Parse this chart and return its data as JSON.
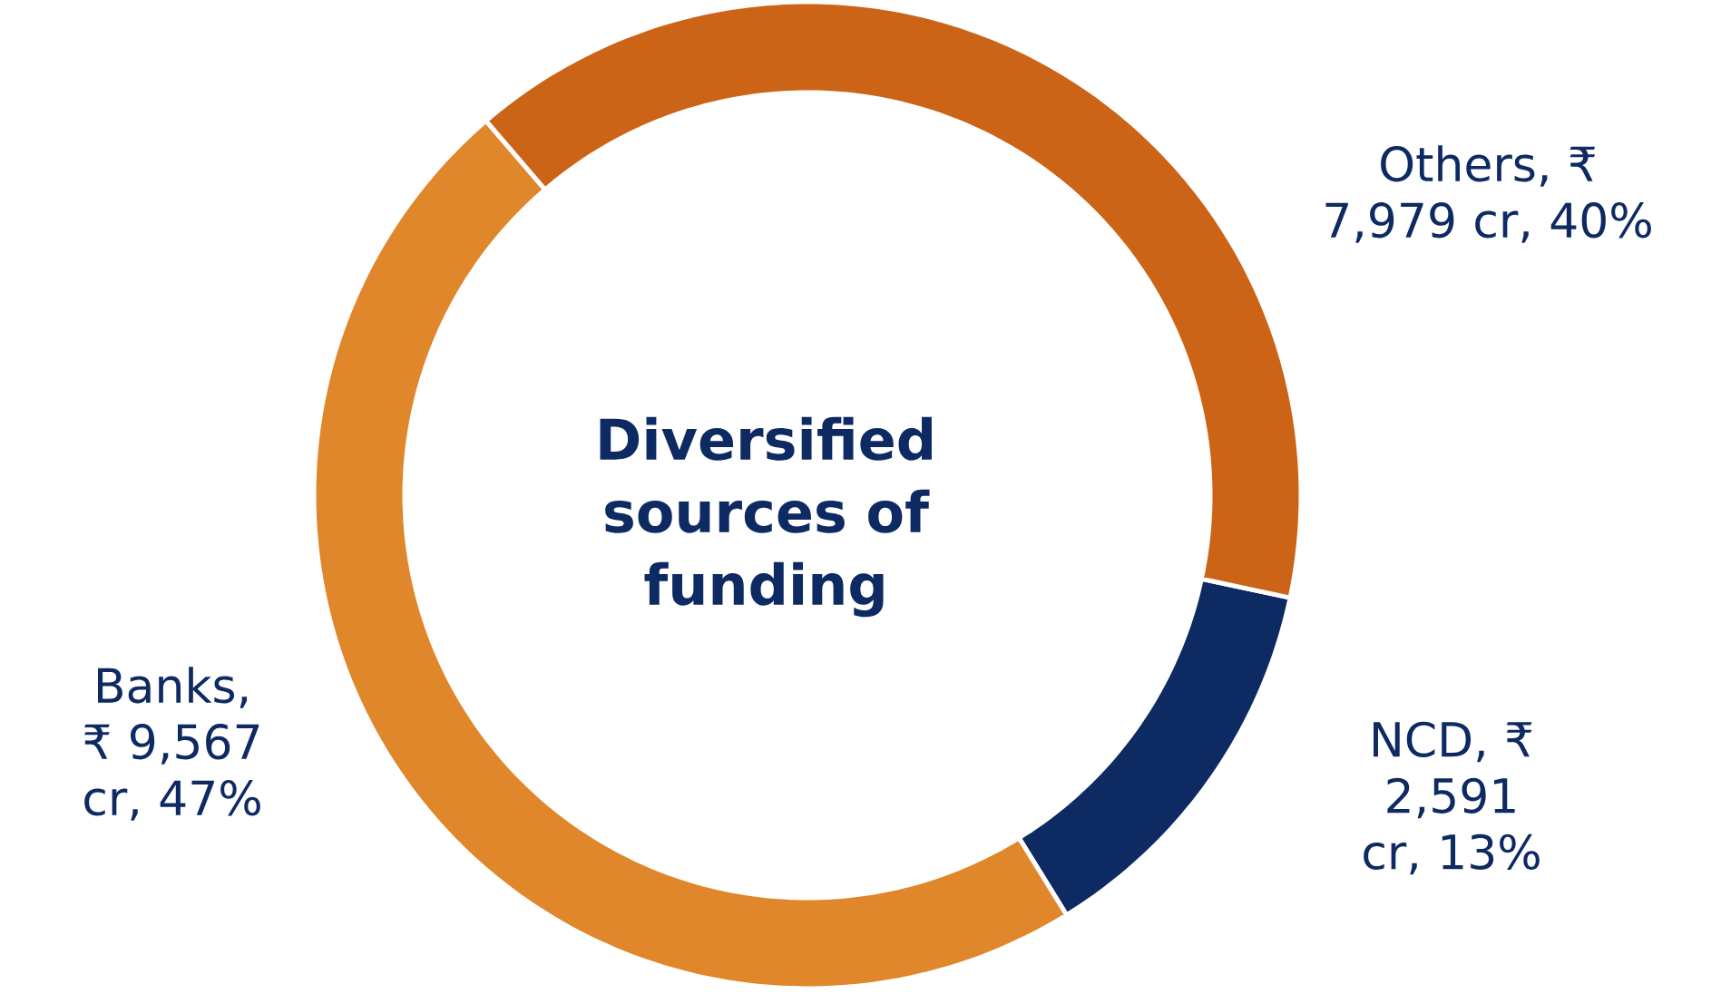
{
  "chart_data": {
    "type": "donut",
    "title": "Diversified sources of funding",
    "categories": [
      "NCD",
      "Banks",
      "Others"
    ],
    "values": [
      2591,
      9567,
      7979
    ],
    "colors": [
      "#0e2a63",
      "#e0862b",
      "#cc6418"
    ],
    "value_labels": [
      ", ₹ 2,591 cr, 13%",
      ", ₹ 9,567 cr, 47%",
      ", ₹ 7,979 cr, 40%"
    ]
  }
}
